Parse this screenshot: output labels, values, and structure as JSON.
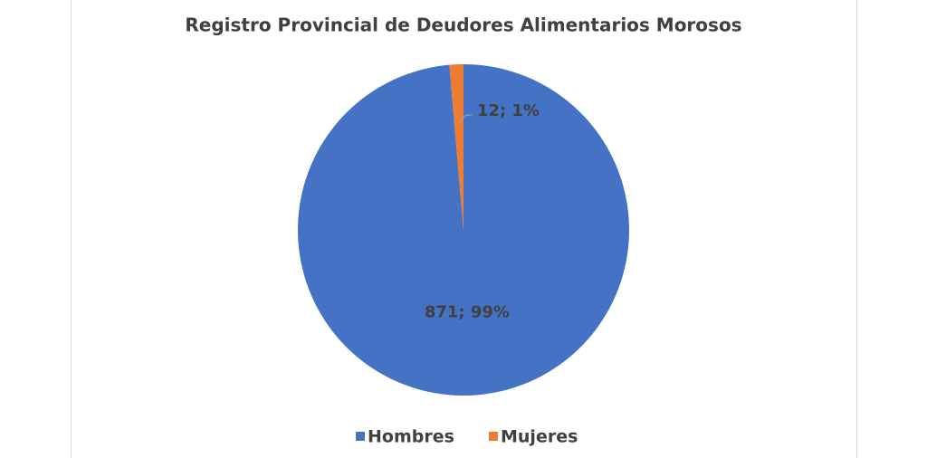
{
  "chart_data": {
    "type": "pie",
    "title": "Registro Provincial de Deudores Alimentarios Morosos",
    "categories": [
      "Hombres",
      "Mujeres"
    ],
    "values": [
      871,
      12
    ],
    "value_labels": [
      "871; 99%",
      "12; 1%"
    ],
    "colors": [
      "#4472c4",
      "#ed7d31"
    ],
    "legend": "bottom"
  }
}
